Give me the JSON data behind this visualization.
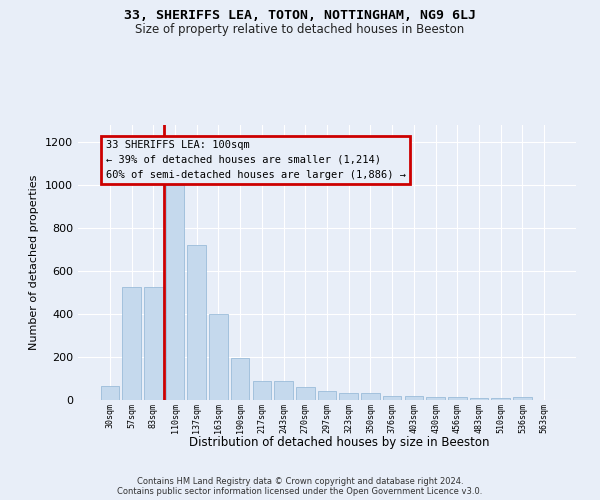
{
  "title": "33, SHERIFFS LEA, TOTON, NOTTINGHAM, NG9 6LJ",
  "subtitle": "Size of property relative to detached houses in Beeston",
  "xlabel": "Distribution of detached houses by size in Beeston",
  "ylabel": "Number of detached properties",
  "footer_line1": "Contains HM Land Registry data © Crown copyright and database right 2024.",
  "footer_line2": "Contains public sector information licensed under the Open Government Licence v3.0.",
  "annotation_line1": "33 SHERIFFS LEA: 100sqm",
  "annotation_line2": "← 39% of detached houses are smaller (1,214)",
  "annotation_line3": "60% of semi-detached houses are larger (1,886) →",
  "bar_color": "#c5d9ed",
  "bar_edge_color": "#8fb4d4",
  "highlight_color": "#cc0000",
  "red_line_at_index": 3,
  "categories": [
    "30sqm",
    "57sqm",
    "83sqm",
    "110sqm",
    "137sqm",
    "163sqm",
    "190sqm",
    "217sqm",
    "243sqm",
    "270sqm",
    "297sqm",
    "323sqm",
    "350sqm",
    "376sqm",
    "403sqm",
    "430sqm",
    "456sqm",
    "483sqm",
    "510sqm",
    "536sqm",
    "563sqm"
  ],
  "values": [
    65,
    525,
    525,
    1000,
    720,
    400,
    197,
    90,
    90,
    60,
    40,
    32,
    32,
    20,
    20,
    15,
    15,
    10,
    10,
    12,
    0
  ],
  "ylim": [
    0,
    1280
  ],
  "yticks": [
    0,
    200,
    400,
    600,
    800,
    1000,
    1200
  ],
  "bg_color": "#e8eef8",
  "grid_color": "#ffffff"
}
